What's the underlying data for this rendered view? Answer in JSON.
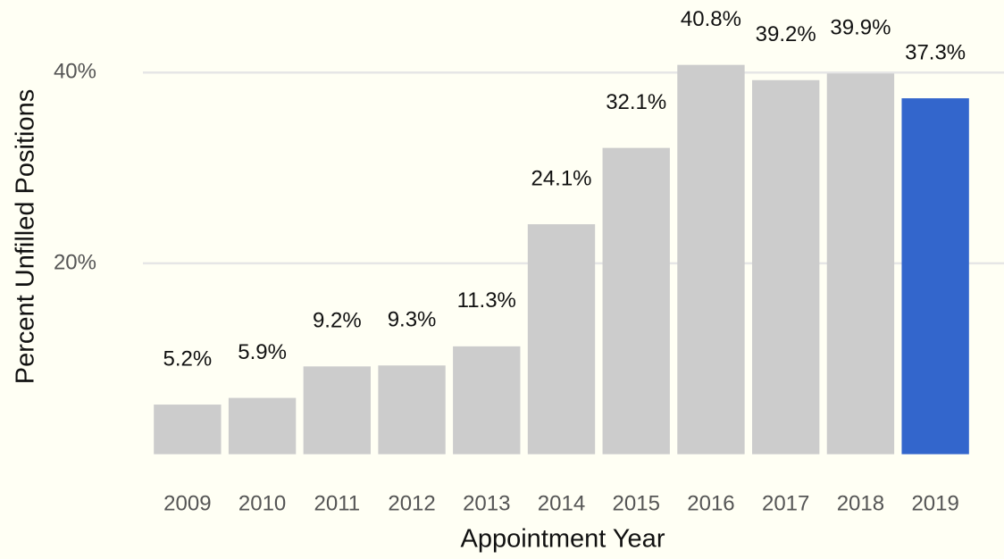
{
  "chart_data": {
    "type": "bar",
    "x_label": "Appointment Year",
    "y_label": "Percent Unfilled Positions",
    "categories": [
      "2009",
      "2010",
      "2011",
      "2012",
      "2013",
      "2014",
      "2015",
      "2016",
      "2017",
      "2018",
      "2019"
    ],
    "values": [
      5.2,
      5.9,
      9.2,
      9.3,
      11.3,
      24.1,
      32.1,
      40.8,
      39.2,
      39.9,
      37.3
    ],
    "value_labels": [
      "5.2%",
      "5.9%",
      "9.2%",
      "9.3%",
      "11.3%",
      "24.1%",
      "32.1%",
      "40.8%",
      "39.2%",
      "39.9%",
      "37.3%"
    ],
    "colors": [
      "#cccccc",
      "#cccccc",
      "#cccccc",
      "#cccccc",
      "#cccccc",
      "#cccccc",
      "#cccccc",
      "#cccccc",
      "#cccccc",
      "#cccccc",
      "#3366cc"
    ],
    "ylim": [
      -2,
      47.6
    ],
    "yticks": [
      {
        "value": 20,
        "label": "20%"
      },
      {
        "value": 40,
        "label": "40%"
      }
    ],
    "grid": true
  }
}
